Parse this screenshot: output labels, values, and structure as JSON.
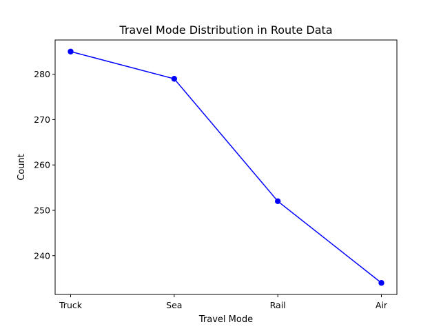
{
  "chart_data": {
    "type": "line",
    "title": "Travel Mode Distribution in Route Data",
    "xlabel": "Travel Mode",
    "ylabel": "Count",
    "categories": [
      "Truck",
      "Sea",
      "Rail",
      "Air"
    ],
    "series": [
      {
        "values": [
          285,
          279,
          252,
          234
        ],
        "color": "#0000ff",
        "marker": "circle"
      }
    ],
    "ylim": [
      231.45,
      287.55
    ],
    "yticks": [
      240,
      250,
      260,
      270,
      280
    ],
    "grid": false,
    "legend": "none"
  }
}
